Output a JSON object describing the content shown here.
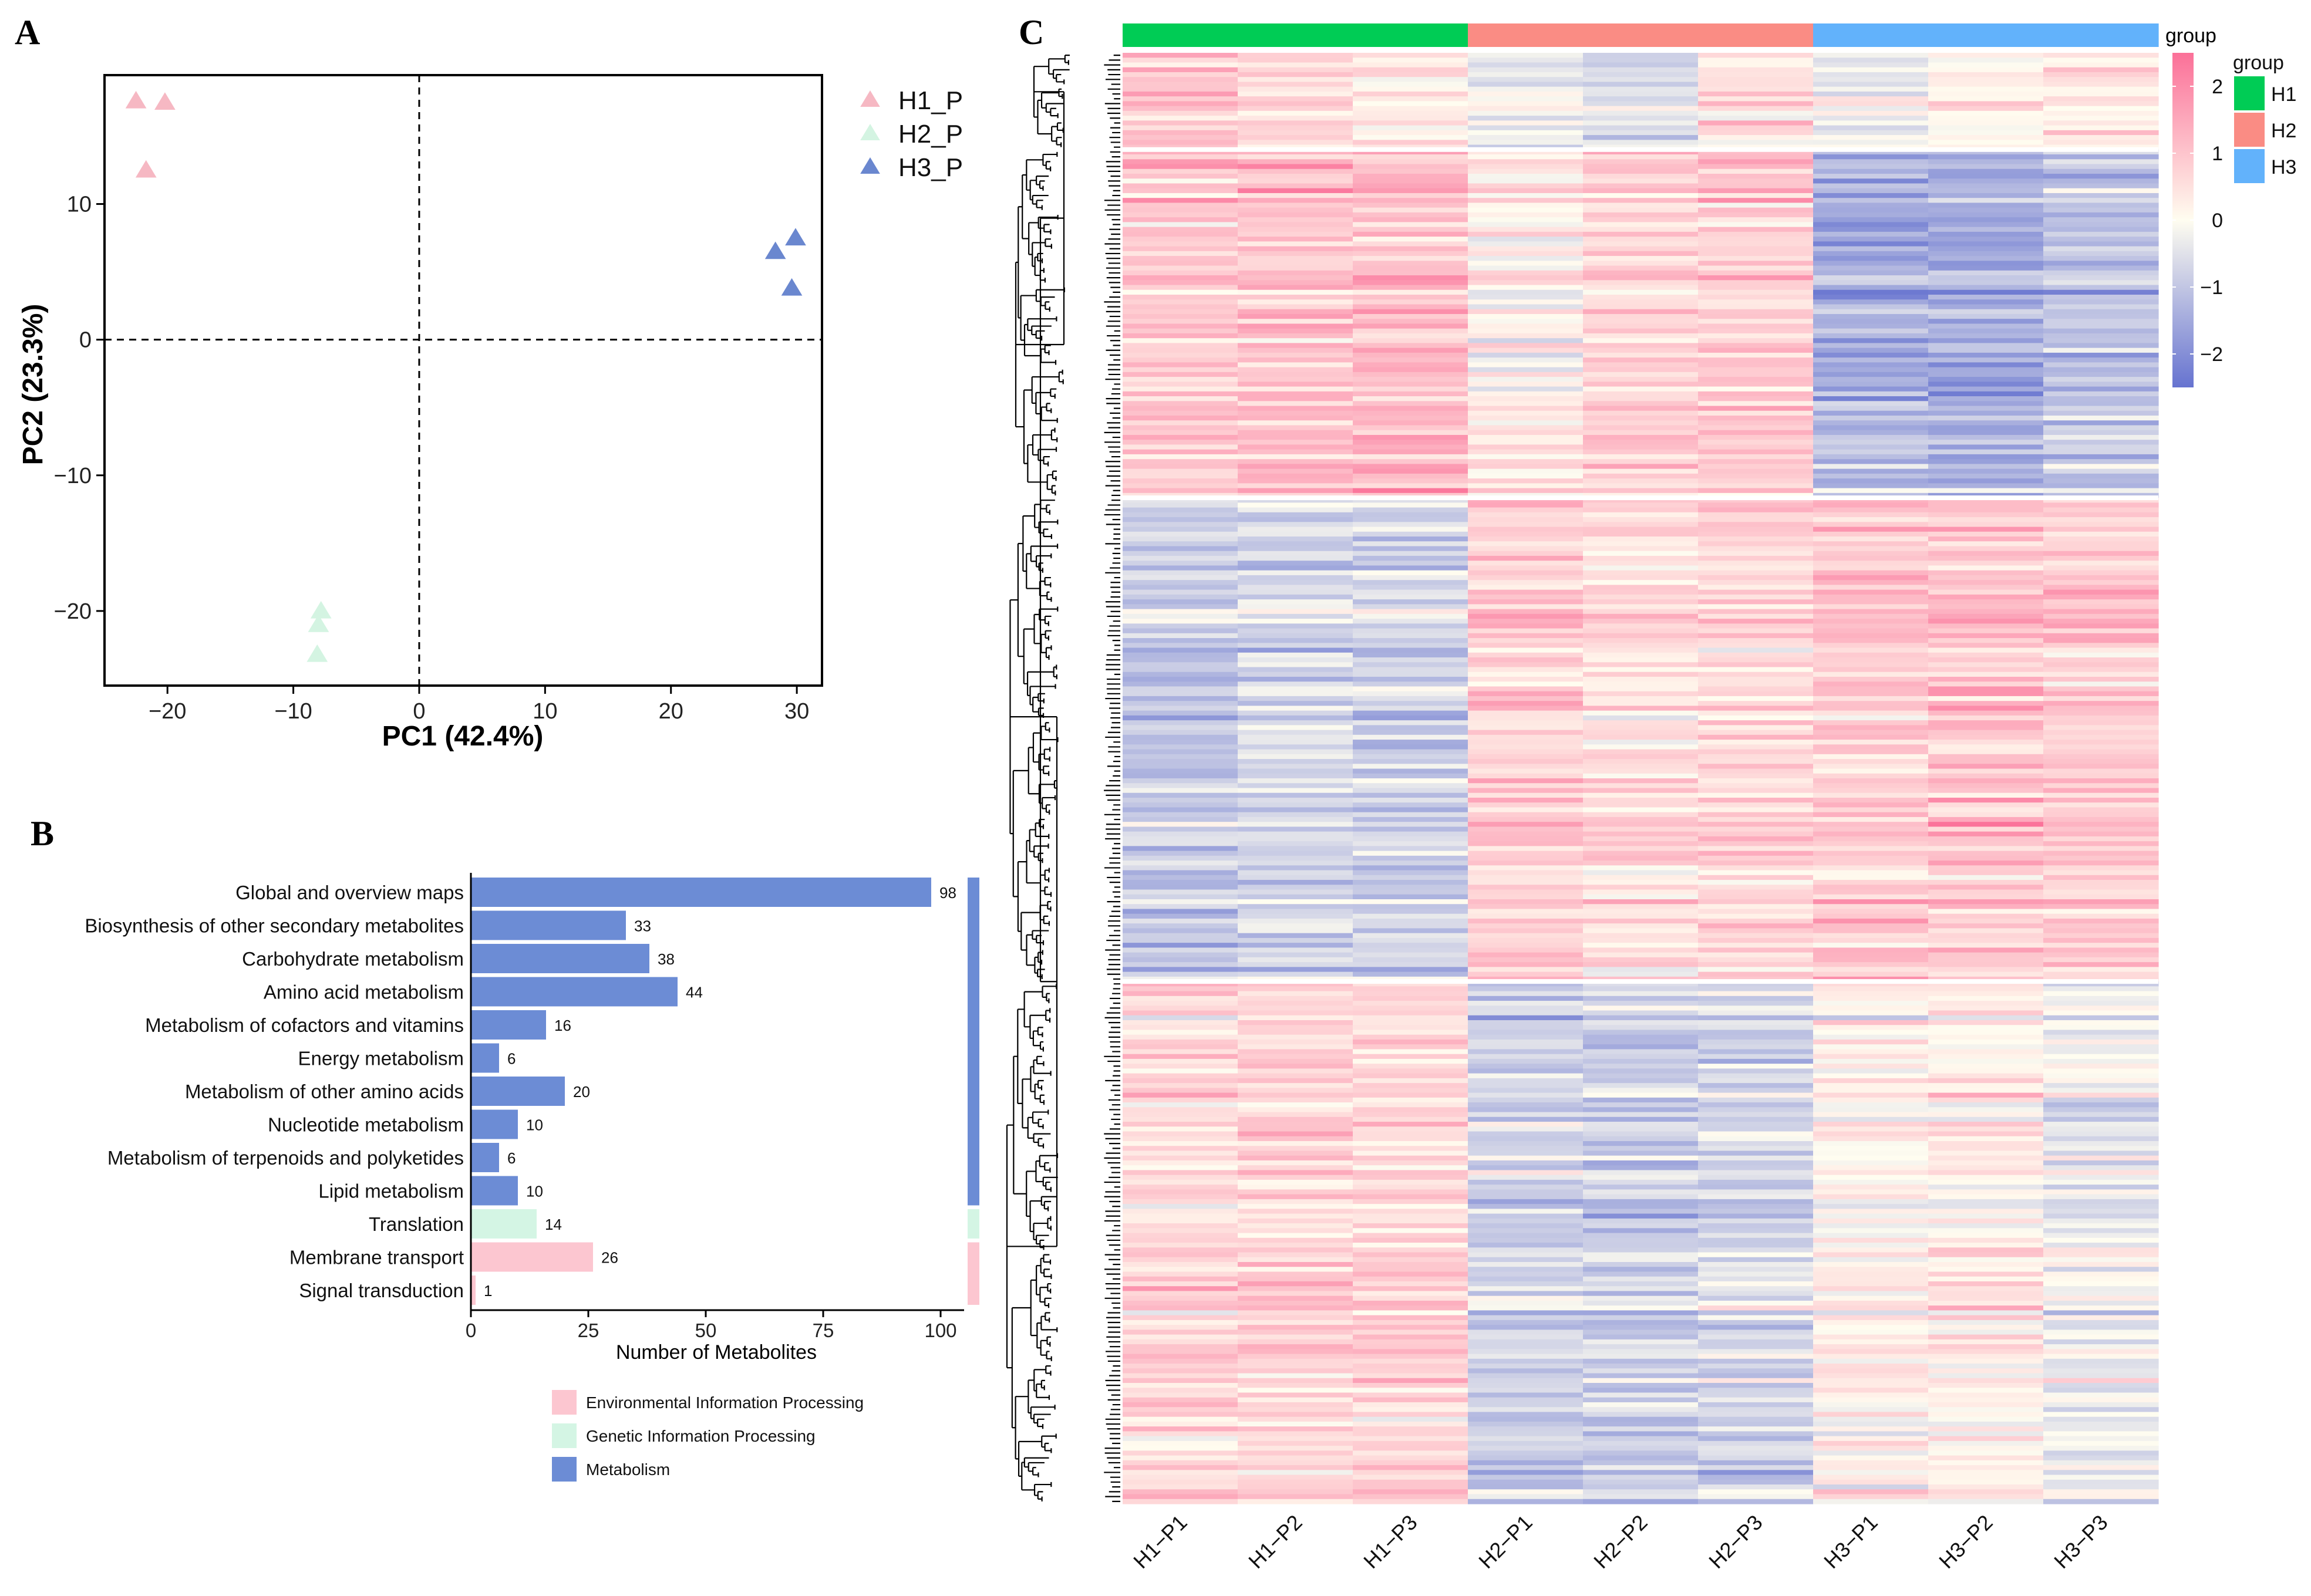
{
  "colors": {
    "H1": "#f6b8c3",
    "H2": "#d4f4e2",
    "H3": "#6a87cf",
    "bar_metabolism": "#6c8cd5",
    "bar_genetic": "#d4f5e4",
    "bar_environmental": "#fcc6d0",
    "group_H1": "#00cc55",
    "group_H2": "#fa8c84",
    "group_H3": "#62b2fb",
    "heat_low": "#6673d0",
    "heat_mid": "#fffdf0",
    "heat_high": "#fb7098"
  },
  "panel_labels": {
    "a": "A",
    "b": "B",
    "c": "C"
  },
  "chart_data": [
    {
      "id": "A",
      "type": "scatter",
      "title": "",
      "xlabel": "PC1 (42.4%)",
      "ylabel": "PC2 (23.3%)",
      "xlim": [
        -25,
        32
      ],
      "ylim": [
        -25.5,
        19.5
      ],
      "xticks": [
        -20,
        -10,
        0,
        10,
        20,
        30
      ],
      "yticks": [
        -20,
        -10,
        0,
        10
      ],
      "xtick_labels": [
        "−20",
        "−10",
        "0",
        "10",
        "20",
        "30"
      ],
      "ytick_labels": [
        "−20",
        "−10",
        "0",
        "10"
      ],
      "reference_lines": {
        "x": 0,
        "y": 0,
        "style": "dashed"
      },
      "marker": "triangle",
      "legend_position": "right",
      "series": [
        {
          "name": "H1_P",
          "color_key": "H1",
          "x": [
            -22.5,
            -20.2,
            -21.7
          ],
          "y": [
            17.6,
            17.5,
            12.5
          ]
        },
        {
          "name": "H2_P",
          "color_key": "H2",
          "x": [
            -7.8,
            -8.0,
            -8.1
          ],
          "y": [
            -20.0,
            -21.0,
            -23.2
          ]
        },
        {
          "name": "H3_P",
          "color_key": "H3",
          "x": [
            28.3,
            29.9,
            29.6
          ],
          "y": [
            6.5,
            7.5,
            3.8
          ]
        }
      ]
    },
    {
      "id": "B",
      "type": "bar",
      "orientation": "horizontal",
      "xlabel": "Number of Metabolites",
      "xlim": [
        0,
        105
      ],
      "xticks": [
        0,
        25,
        50,
        75,
        100
      ],
      "xtick_labels": [
        "0",
        "25",
        "50",
        "75",
        "100"
      ],
      "categories": [
        "Global and overview maps",
        "Biosynthesis of other secondary metabolites",
        "Carbohydrate metabolism",
        "Amino acid metabolism",
        "Metabolism of cofactors and vitamins",
        "Energy metabolism",
        "Metabolism of other amino acids",
        "Nucleotide metabolism",
        "Metabolism of terpenoids and polyketides",
        "Lipid metabolism",
        "Translation",
        "Membrane transport",
        "Signal transduction"
      ],
      "values": [
        98,
        33,
        38,
        44,
        16,
        6,
        20,
        10,
        6,
        10,
        14,
        26,
        1
      ],
      "value_labels": [
        "98",
        "33",
        "38",
        "44",
        "16",
        "6",
        "20",
        "10",
        "6",
        "10",
        "14",
        "26",
        "1"
      ],
      "class_keys": [
        "Metabolism",
        "Metabolism",
        "Metabolism",
        "Metabolism",
        "Metabolism",
        "Metabolism",
        "Metabolism",
        "Metabolism",
        "Metabolism",
        "Metabolism",
        "Genetic Information Processing",
        "Environmental Information Processing",
        "Environmental Information Processing"
      ],
      "legend": [
        {
          "label": "Environmental Information Processing",
          "color_key": "bar_environmental"
        },
        {
          "label": "Genetic Information Processing",
          "color_key": "bar_genetic"
        },
        {
          "label": "Metabolism",
          "color_key": "bar_metabolism"
        }
      ],
      "legend_position": "bottom"
    },
    {
      "id": "C",
      "type": "heatmap",
      "columns": [
        "H1−P1",
        "H1−P2",
        "H1−P3",
        "H2−P1",
        "H2−P2",
        "H2−P3",
        "H3−P1",
        "H3−P2",
        "H3−P3"
      ],
      "column_groups": [
        "H1",
        "H1",
        "H1",
        "H2",
        "H2",
        "H2",
        "H3",
        "H3",
        "H3"
      ],
      "group_annotation_label": "group",
      "group_legend_title": "group",
      "group_legend": [
        "H1",
        "H2",
        "H3"
      ],
      "color_scale": {
        "min": -2.5,
        "max": 2.5,
        "ticks": [
          2,
          1,
          0,
          -1,
          -2
        ],
        "tick_labels": [
          "2",
          "1",
          "0",
          "−1",
          "−2"
        ]
      },
      "row_clustering": "dendrogram",
      "row_count": 300,
      "row_cluster_breaks": [
        0,
        20,
        92,
        192,
        300
      ],
      "row_cluster_means": [
        [
          1.0,
          0.6,
          0.3,
          -0.3,
          -0.7,
          0.4,
          -0.3,
          0.2,
          0.3
        ],
        [
          0.9,
          1.0,
          1.1,
          0.2,
          0.7,
          0.8,
          -1.4,
          -1.5,
          -1.1
        ],
        [
          -0.9,
          -0.7,
          -0.8,
          0.9,
          0.6,
          0.7,
          0.9,
          1.0,
          0.9
        ],
        [
          0.7,
          0.7,
          0.8,
          -0.7,
          -0.8,
          -0.6,
          0.2,
          0.3,
          -0.2
        ]
      ]
    }
  ]
}
